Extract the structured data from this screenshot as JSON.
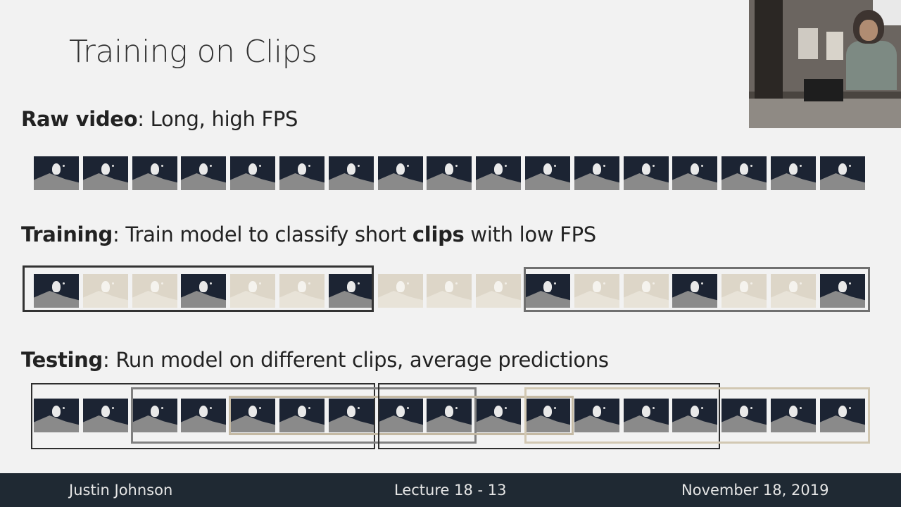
{
  "slide": {
    "title": "Training on Clips",
    "raw_label": "Raw video",
    "raw_text": ": Long, high FPS",
    "training_label": "Training",
    "training_text_1": ": Train model to classify short ",
    "training_bold": "clips",
    "training_text_2": " with low FPS",
    "testing_label": "Testing",
    "testing_text": ": Run model on different clips, average predictions"
  },
  "footer": {
    "author": "Justin Johnson",
    "lecture": "Lecture 18 - 13",
    "date": "November 18, 2019"
  },
  "colors": {
    "footer_bg": "#1f2933",
    "clip_box_dark": "#333333",
    "clip_box_gray": "#707070",
    "clip_box_tan": "#c8bca6"
  },
  "frames": {
    "count": 17,
    "raw_faded": [],
    "training_faded": [
      1,
      2,
      4,
      5,
      7,
      8,
      9,
      11,
      12,
      14,
      15
    ],
    "testing_faded": []
  }
}
